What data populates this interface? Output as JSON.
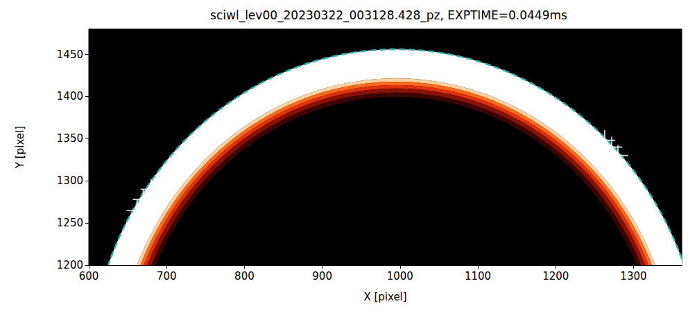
{
  "chart_data": {
    "type": "image",
    "title": "sciwl_lev00_20230322_003128.428_pz, EXPTIME=0.0449ms",
    "xlabel": "X [pixel]",
    "ylabel": "Y [pixel]",
    "xlim": [
      600,
      1362
    ],
    "ylim": [
      1200,
      1480
    ],
    "xticks": [
      600,
      700,
      800,
      900,
      1000,
      1100,
      1200,
      1300
    ],
    "yticks": [
      1200,
      1250,
      1300,
      1350,
      1400,
      1450
    ],
    "limb_rings": [
      {
        "r_inner": 361,
        "r_outer": 395.4,
        "color": "#ffffff"
      },
      {
        "r_inner": 357,
        "r_outer": 361,
        "color": "#ffd2a0"
      },
      {
        "r_inner": 353,
        "r_outer": 357,
        "color": "#ff6a1a"
      },
      {
        "r_inner": 349,
        "r_outer": 353,
        "color": "#e0300c"
      },
      {
        "r_inner": 344,
        "r_outer": 349,
        "color": "#8a1205"
      },
      {
        "r_inner": 339,
        "r_outer": 344,
        "color": "#3a0502"
      }
    ],
    "limb_fit": {
      "center": [
        995,
        1060.6
      ],
      "radius": 395.4,
      "color": "#2bb5b5",
      "line_style": "dashed"
    },
    "points": {
      "x": [
        662,
        670,
        680,
        1263,
        1272,
        1280
      ],
      "y": [
        1265,
        1278,
        1290,
        1348,
        1340,
        1330
      ],
      "color": "#ffffff",
      "marker": "plus"
    }
  }
}
